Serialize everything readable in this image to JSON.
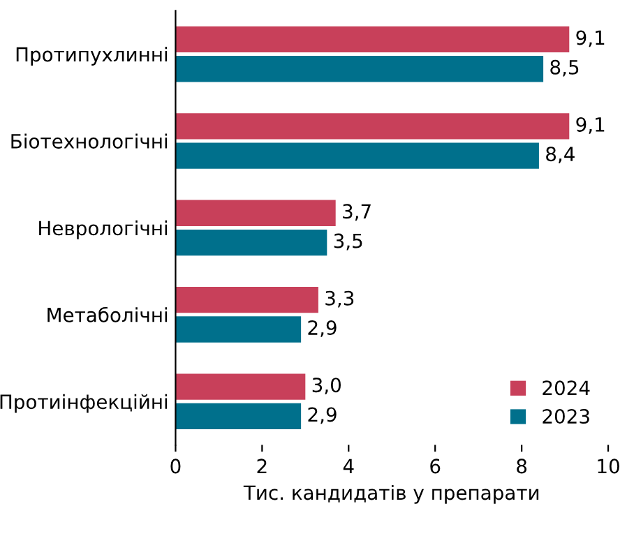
{
  "chart_data": {
    "type": "bar",
    "orientation": "horizontal",
    "xlabel": "Тис. кандидатів у препарати",
    "categories": [
      "Протипухлинні",
      "Біотехнологічні",
      "Неврологічні",
      "Метаболічні",
      "Протиінфекційні"
    ],
    "series": [
      {
        "name": "2024",
        "color": "#c8405a",
        "values": [
          9.1,
          9.1,
          3.7,
          3.3,
          3.0
        ],
        "value_labels": [
          "9,1",
          "9,1",
          "3,7",
          "3,3",
          "3,0"
        ]
      },
      {
        "name": "2023",
        "color": "#00708c",
        "values": [
          8.5,
          8.4,
          3.5,
          2.9,
          2.9
        ],
        "value_labels": [
          "8,5",
          "8,4",
          "3,5",
          "2,9",
          "2,9"
        ]
      }
    ],
    "xlim": [
      0,
      10
    ],
    "xticks": [
      0,
      2,
      4,
      6,
      8,
      10
    ],
    "grid": false,
    "legend": "bottom right"
  }
}
